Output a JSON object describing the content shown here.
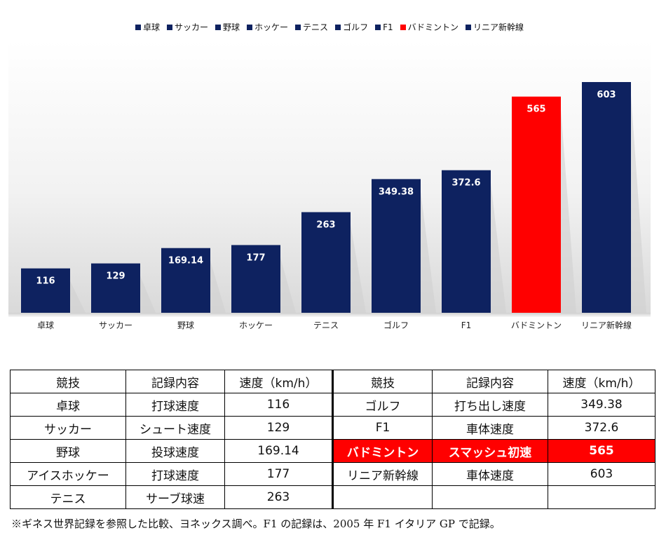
{
  "chart_data": {
    "type": "bar",
    "categories": [
      "卓球",
      "サッカー",
      "野球",
      "ホッケー",
      "テニス",
      "ゴルフ",
      "F1",
      "バドミントン",
      "リニア新幹線"
    ],
    "values": [
      116,
      129,
      169.14,
      177,
      263,
      349.38,
      372.6,
      565,
      603
    ],
    "value_labels": [
      "116",
      "129",
      "169.14",
      "177",
      "263",
      "349.38",
      "372.6",
      "565",
      "603"
    ],
    "colors": [
      "#0e2260",
      "#0e2260",
      "#0e2260",
      "#0e2260",
      "#0e2260",
      "#0e2260",
      "#0e2260",
      "#ff0000",
      "#0e2260"
    ],
    "legend": [
      "卓球",
      "サッカー",
      "野球",
      "ホッケー",
      "テニス",
      "ゴルフ",
      "F1",
      "バドミントン",
      "リニア新幹線"
    ],
    "legend_position": "top",
    "title": "",
    "xlabel": "",
    "ylabel": "",
    "grid": false,
    "ylim": [
      0,
      650
    ]
  },
  "table": {
    "headers": [
      "競技",
      "記録内容",
      "速度（km/h）",
      "競技",
      "記録内容",
      "速度（km/h）"
    ],
    "rows": [
      [
        "卓球",
        "打球速度",
        "116",
        "ゴルフ",
        "打ち出し速度",
        "349.38"
      ],
      [
        "サッカー",
        "シュート速度",
        "129",
        "F1",
        "車体速度",
        "372.6"
      ],
      [
        "野球",
        "投球速度",
        "169.14",
        "バドミントン",
        "スマッシュ初速",
        "565"
      ],
      [
        "アイスホッケー",
        "打球速度",
        "177",
        "リニア新幹線",
        "車体速度",
        "603"
      ],
      [
        "テニス",
        "サーブ球速",
        "263",
        "",
        "",
        ""
      ]
    ],
    "highlight_row": 2
  },
  "footnote": "※ギネス世界記録を参照した比較、ヨネックス調べ。F1 の記録は、2005 年 F1 イタリア GP で記録。",
  "colors": {
    "navy": "#0e2260",
    "highlight": "#ff0000"
  }
}
